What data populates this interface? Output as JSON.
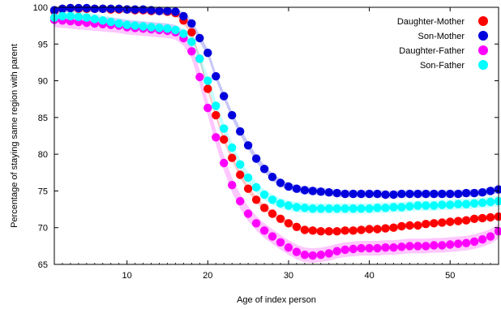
{
  "chart_data": {
    "type": "line",
    "xlabel": "Age of index person",
    "ylabel": "Percentage of staying same region with parent",
    "xlim": [
      1,
      56
    ],
    "ylim": [
      65,
      100
    ],
    "xticks": [
      10,
      20,
      30,
      40,
      50
    ],
    "yticks": [
      65,
      70,
      75,
      80,
      85,
      90,
      95,
      100
    ],
    "x_tick_labels": [
      "10",
      "20",
      "30",
      "40",
      "50"
    ],
    "y_tick_labels": [
      "65",
      "70",
      "75",
      "80",
      "85",
      "90",
      "95",
      "100"
    ],
    "legend_position": "top-right",
    "grid": false,
    "markers": "filled circles with shaded confidence band",
    "x": [
      1,
      2,
      3,
      4,
      5,
      6,
      7,
      8,
      9,
      10,
      11,
      12,
      13,
      14,
      15,
      16,
      17,
      18,
      19,
      20,
      21,
      22,
      23,
      24,
      25,
      26,
      27,
      28,
      29,
      30,
      31,
      32,
      33,
      34,
      35,
      36,
      37,
      38,
      39,
      40,
      41,
      42,
      43,
      44,
      45,
      46,
      47,
      48,
      49,
      50,
      51,
      52,
      53,
      54,
      55,
      56
    ],
    "series": [
      {
        "name": "Daughter-Mother",
        "color": "#ff0000",
        "values": [
          99.5,
          99.8,
          99.9,
          99.8,
          99.8,
          99.8,
          99.8,
          99.7,
          99.7,
          99.7,
          99.6,
          99.6,
          99.5,
          99.5,
          99.4,
          99.2,
          98.2,
          96.6,
          93.0,
          88.9,
          85.3,
          82.0,
          79.5,
          77.2,
          75.3,
          73.8,
          72.7,
          71.9,
          71.2,
          70.6,
          70.1,
          69.7,
          69.6,
          69.5,
          69.5,
          69.5,
          69.6,
          69.6,
          69.7,
          69.8,
          69.8,
          69.9,
          70.0,
          70.2,
          70.3,
          70.3,
          70.5,
          70.6,
          70.7,
          70.8,
          70.9,
          71.0,
          71.2,
          71.3,
          71.4,
          71.5
        ],
        "band": 0.4
      },
      {
        "name": "Son-Mother",
        "color": "#0000dd",
        "values": [
          99.6,
          99.8,
          99.9,
          99.9,
          99.9,
          99.8,
          99.8,
          99.8,
          99.8,
          99.7,
          99.7,
          99.7,
          99.6,
          99.5,
          99.5,
          99.4,
          98.8,
          97.8,
          95.8,
          93.8,
          90.6,
          87.9,
          85.3,
          83.1,
          81.2,
          79.4,
          78.0,
          76.9,
          76.1,
          75.6,
          75.3,
          75.1,
          75.0,
          74.9,
          74.8,
          74.7,
          74.6,
          74.6,
          74.6,
          74.6,
          74.6,
          74.5,
          74.5,
          74.6,
          74.6,
          74.6,
          74.6,
          74.6,
          74.6,
          74.6,
          74.6,
          74.7,
          74.7,
          74.8,
          75.0,
          75.2
        ],
        "band": 0.5
      },
      {
        "name": "Daughter-Father",
        "color": "#ff00ff",
        "values": [
          98.3,
          98.2,
          98.1,
          98.0,
          97.9,
          97.8,
          97.7,
          97.6,
          97.5,
          97.3,
          97.2,
          97.1,
          97.0,
          96.9,
          96.8,
          96.6,
          95.8,
          94.0,
          90.5,
          86.3,
          82.3,
          78.8,
          75.8,
          73.6,
          71.9,
          70.6,
          69.6,
          68.8,
          68.0,
          67.3,
          66.7,
          66.3,
          66.2,
          66.3,
          66.5,
          66.8,
          67.0,
          67.1,
          67.2,
          67.2,
          67.2,
          67.3,
          67.3,
          67.4,
          67.5,
          67.5,
          67.5,
          67.6,
          67.6,
          67.7,
          67.8,
          67.9,
          68.1,
          68.4,
          68.8,
          69.5
        ],
        "band": 1.0
      },
      {
        "name": "Son-Father",
        "color": "#00ffff",
        "values": [
          98.6,
          98.8,
          98.8,
          98.7,
          98.6,
          98.4,
          98.2,
          98.0,
          97.8,
          97.6,
          97.5,
          97.4,
          97.3,
          97.2,
          97.1,
          96.9,
          96.4,
          95.3,
          93.0,
          90.0,
          86.6,
          83.5,
          80.9,
          78.6,
          76.8,
          75.5,
          74.5,
          73.8,
          73.3,
          73.0,
          72.8,
          72.7,
          72.6,
          72.6,
          72.6,
          72.6,
          72.6,
          72.6,
          72.6,
          72.6,
          72.7,
          72.7,
          72.8,
          72.8,
          72.9,
          73.0,
          73.0,
          73.0,
          73.1,
          73.1,
          73.2,
          73.2,
          73.3,
          73.4,
          73.5,
          73.6
        ],
        "band": 0.7
      }
    ]
  }
}
